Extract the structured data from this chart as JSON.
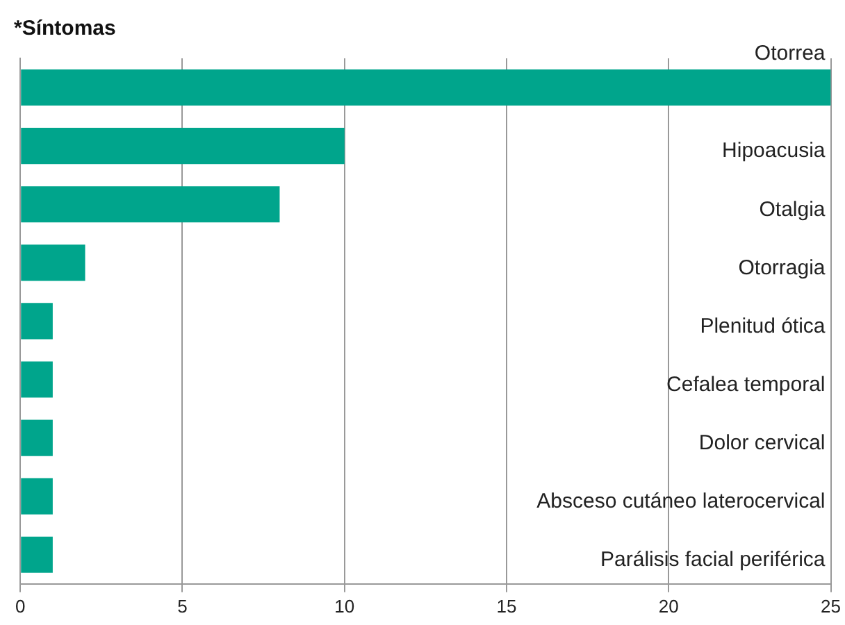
{
  "chart_data": {
    "type": "bar",
    "orientation": "horizontal",
    "title": "*Síntomas",
    "categories": [
      "Otorrea",
      "Hipoacusia",
      "Otalgia",
      "Otorragia",
      "Plenitud ótica",
      "Cefalea temporal",
      "Dolor cervical",
      "Absceso cutáneo laterocervical",
      "Parálisis facial periférica"
    ],
    "values": [
      25,
      10,
      8,
      2,
      1,
      1,
      1,
      1,
      1
    ],
    "color": "#00a58c",
    "xlim": [
      0,
      25
    ],
    "xticks": [
      0,
      5,
      10,
      15,
      20,
      25
    ],
    "grid": "x",
    "legend": false
  }
}
